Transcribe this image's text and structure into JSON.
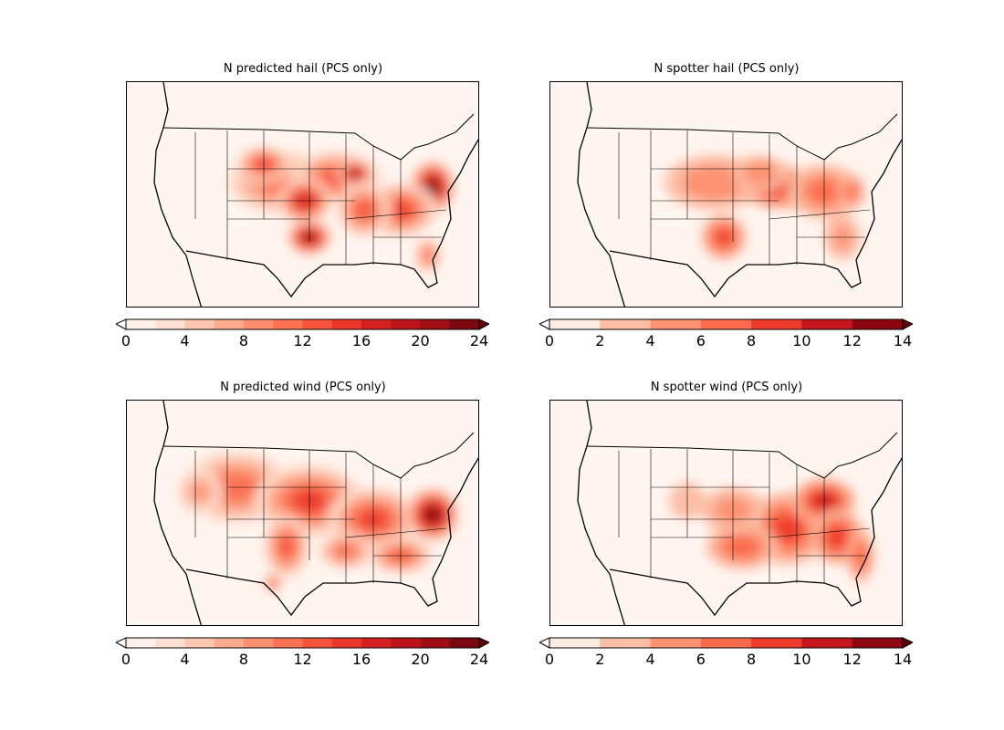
{
  "panels": [
    {
      "title": "N predicted hail (PCS only)",
      "colorbar": {
        "min": 0,
        "max": 24,
        "step": 2,
        "ticks": [
          "0",
          "4",
          "8",
          "12",
          "16",
          "20",
          "24"
        ],
        "extend": "both"
      },
      "colors": [
        "#fff0e9",
        "#fee0d2",
        "#fdc6b0",
        "#fcab8f",
        "#fc8f6f",
        "#fb7353",
        "#f6553c",
        "#eb372a",
        "#d42020",
        "#bc141a",
        "#a00e15",
        "#7b0810"
      ],
      "over": "#67000d"
    },
    {
      "title": "N spotter hail (PCS only)",
      "colorbar": {
        "min": 0,
        "max": 14,
        "step": 2,
        "ticks": [
          "0",
          "2",
          "4",
          "6",
          "8",
          "10",
          "12",
          "14"
        ],
        "extend": "both"
      },
      "colors": [
        "#feebe2",
        "#fcbea5",
        "#fc9272",
        "#fb6a4a",
        "#ef3b2c",
        "#c4161c",
        "#8c0710"
      ],
      "over": "#67000d"
    },
    {
      "title": "N predicted wind (PCS only)",
      "colorbar": {
        "min": 0,
        "max": 24,
        "step": 2,
        "ticks": [
          "0",
          "4",
          "8",
          "12",
          "16",
          "20",
          "24"
        ],
        "extend": "both"
      },
      "colors": [
        "#fff0e9",
        "#fee0d2",
        "#fdc6b0",
        "#fcab8f",
        "#fc8f6f",
        "#fb7353",
        "#f6553c",
        "#eb372a",
        "#d42020",
        "#bc141a",
        "#a00e15",
        "#7b0810"
      ],
      "over": "#67000d"
    },
    {
      "title": "N spotter wind (PCS only)",
      "colorbar": {
        "min": 0,
        "max": 14,
        "step": 2,
        "ticks": [
          "0",
          "2",
          "4",
          "6",
          "8",
          "10",
          "12",
          "14"
        ],
        "extend": "both"
      },
      "colors": [
        "#feebe2",
        "#fcbea5",
        "#fc9272",
        "#fb6a4a",
        "#ef3b2c",
        "#c4161c",
        "#8c0710"
      ],
      "over": "#67000d"
    }
  ]
}
